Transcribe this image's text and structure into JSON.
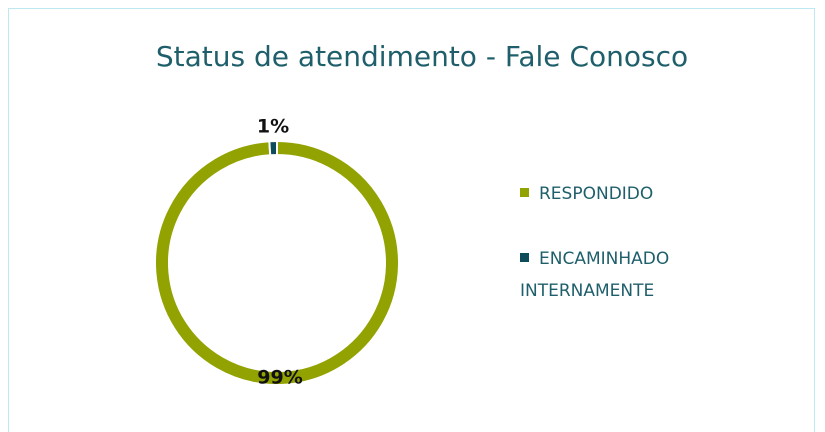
{
  "chart_data": {
    "type": "pie",
    "title": "Status de atendimento - Fale Conosco",
    "categories": [
      "RESPONDIDO",
      "ENCAMINHADO INTERNAMENTE"
    ],
    "values": [
      99,
      1
    ],
    "value_labels": [
      "99%",
      "1%"
    ],
    "colors": [
      "#92a200",
      "#0f4c5a"
    ],
    "donut": true,
    "legend": "right"
  }
}
